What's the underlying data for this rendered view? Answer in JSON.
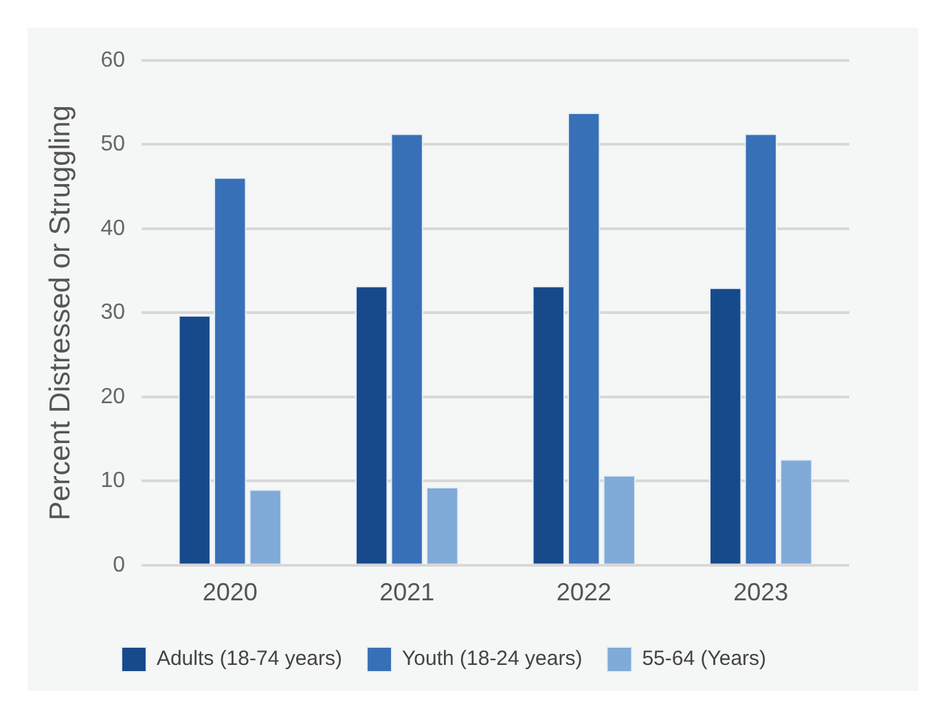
{
  "chart_data": {
    "type": "bar",
    "ylabel": "Percent Distressed or Struggling",
    "categories": [
      "2020",
      "2021",
      "2022",
      "2023"
    ],
    "series": [
      {
        "name": "Adults (18-74 years)",
        "color": "#174a8b",
        "values": [
          29.7,
          33.2,
          33.2,
          33.0
        ]
      },
      {
        "name": "Youth (18-24 years)",
        "color": "#3870b7",
        "values": [
          46.1,
          51.3,
          53.8,
          51.3
        ]
      },
      {
        "name": "55-64 (Years)",
        "color": "#80aad8",
        "values": [
          9.0,
          9.3,
          10.7,
          12.6
        ]
      }
    ],
    "ylim": [
      0,
      60
    ],
    "yticks": [
      0,
      10,
      20,
      30,
      40,
      50,
      60
    ],
    "grid": "y",
    "legend": "bottom"
  }
}
